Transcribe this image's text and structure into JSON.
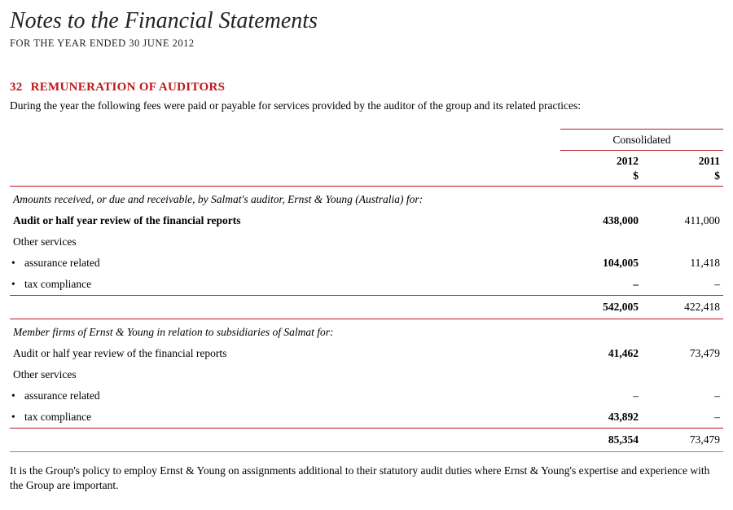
{
  "header": {
    "title": "Notes to the Financial Statements",
    "subtitle": "FOR THE YEAR ENDED 30 JUNE 2012"
  },
  "section": {
    "number": "32",
    "title": "REMUNERATION OF AUDITORS",
    "intro": "During the year the following fees were paid or payable for services provided by the auditor of the group and its related practices:"
  },
  "table": {
    "group_header": "Consolidated",
    "col1_year": "2012",
    "col2_year": "2011",
    "unit": "$",
    "block1": {
      "heading": "Amounts received, or due and receivable, by Salmat's auditor, Ernst & Young (Australia) for:",
      "row_audit": {
        "label": "Audit or half year review of the financial reports",
        "v2012": "438,000",
        "v2011": "411,000"
      },
      "row_other_label": "Other services",
      "row_assurance": {
        "label": "assurance related",
        "v2012": "104,005",
        "v2011": "11,418"
      },
      "row_tax": {
        "label": "tax compliance",
        "v2012": "–",
        "v2011": "–"
      },
      "subtotal": {
        "v2012": "542,005",
        "v2011": "422,418"
      }
    },
    "block2": {
      "heading": "Member firms of Ernst & Young in relation to subsidiaries of Salmat for:",
      "row_audit": {
        "label": "Audit or half year review of the financial reports",
        "v2012": "41,462",
        "v2011": "73,479"
      },
      "row_other_label": "Other services",
      "row_assurance": {
        "label": "assurance related",
        "v2012": "–",
        "v2011": "–"
      },
      "row_tax": {
        "label": "tax compliance",
        "v2012": "43,892",
        "v2011": "–"
      },
      "subtotal": {
        "v2012": "85,354",
        "v2011": "73,479"
      }
    }
  },
  "closing": "It is the Group's policy to employ Ernst & Young on assignments additional to their statutory audit duties where Ernst & Young's expertise and experience with the Group are important.",
  "colors": {
    "accent_red": "#c0171c",
    "text": "#000000",
    "background": "#ffffff"
  }
}
